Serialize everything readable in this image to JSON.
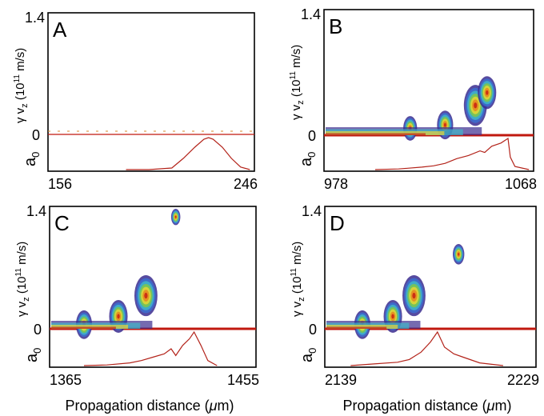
{
  "figure": {
    "ylabel": "γ v_z (10¹¹ m/s)",
    "ylabel_parts": {
      "prefix": "γ v",
      "sub": "z",
      "mid": " (10",
      "sup": "11",
      "suffix": " m/s)"
    },
    "a0_label": "a",
    "a0_sub": "0",
    "xlabel": "Propagation distance (μm)",
    "xlabel_parts": {
      "text": "Propagation distance (",
      "mu": "μ",
      "unit": "m)"
    }
  },
  "chart_data": [
    {
      "type": "heatmap",
      "panel": "A",
      "x_ticks": [
        "156",
        "246"
      ],
      "y_ticks": [
        "0",
        "1.4"
      ],
      "xlim": [
        156,
        246
      ],
      "ylim": [
        0,
        1.4
      ],
      "a0_envelope": {
        "x": [
          190,
          200,
          210,
          215,
          220,
          224,
          226,
          228,
          232,
          236,
          240,
          244
        ],
        "y": [
          0.0,
          0.0,
          0.05,
          0.35,
          0.7,
          0.95,
          1.0,
          0.95,
          0.7,
          0.35,
          0.08,
          0.0
        ]
      },
      "clusters": []
    },
    {
      "type": "heatmap",
      "panel": "B",
      "x_ticks": [
        "978",
        "1068"
      ],
      "y_ticks": [
        "0",
        "1.4"
      ],
      "xlim": [
        978,
        1068
      ],
      "ylim": [
        0,
        1.4
      ],
      "a0_envelope": {
        "x": [
          1000,
          1010,
          1020,
          1025,
          1030,
          1035,
          1040,
          1045,
          1047,
          1050,
          1054,
          1057,
          1058,
          1060,
          1066
        ],
        "y": [
          0.0,
          0.02,
          0.08,
          0.12,
          0.2,
          0.35,
          0.45,
          0.6,
          0.55,
          0.75,
          0.85,
          1.0,
          0.4,
          0.1,
          0.0
        ]
      },
      "clusters": [
        {
          "x": 1015,
          "y": 0.08,
          "size": 0.6
        },
        {
          "x": 1030,
          "y": 0.12,
          "size": 0.7
        },
        {
          "x": 1043,
          "y": 0.35,
          "size": 1.0
        },
        {
          "x": 1048,
          "y": 0.5,
          "size": 0.8
        }
      ]
    },
    {
      "type": "heatmap",
      "panel": "C",
      "x_ticks": [
        "1365",
        "1455"
      ],
      "y_ticks": [
        "0",
        "1.4"
      ],
      "xlim": [
        1365,
        1455
      ],
      "ylim": [
        0,
        1.4
      ],
      "a0_envelope": {
        "x": [
          1380,
          1390,
          1400,
          1405,
          1410,
          1415,
          1418,
          1420,
          1423,
          1426,
          1428,
          1431,
          1434,
          1438
        ],
        "y": [
          0.0,
          0.02,
          0.08,
          0.15,
          0.25,
          0.35,
          0.5,
          0.3,
          0.6,
          0.8,
          1.0,
          0.6,
          0.15,
          0.0
        ]
      },
      "clusters": [
        {
          "x": 1380,
          "y": 0.05,
          "size": 0.7
        },
        {
          "x": 1395,
          "y": 0.15,
          "size": 0.8
        },
        {
          "x": 1407,
          "y": 0.4,
          "size": 1.0
        },
        {
          "x": 1420,
          "y": 1.35,
          "size": 0.4
        }
      ]
    },
    {
      "type": "heatmap",
      "panel": "D",
      "x_ticks": [
        "2139",
        "2229"
      ],
      "y_ticks": [
        "0",
        "1.4"
      ],
      "xlim": [
        2139,
        2229
      ],
      "ylim": [
        0,
        1.4
      ],
      "a0_envelope": {
        "x": [
          2150,
          2160,
          2170,
          2175,
          2180,
          2184,
          2187,
          2190,
          2194,
          2198,
          2205,
          2215
        ],
        "y": [
          0.0,
          0.05,
          0.1,
          0.18,
          0.4,
          0.7,
          1.0,
          0.55,
          0.35,
          0.25,
          0.08,
          0.0
        ]
      },
      "clusters": [
        {
          "x": 2155,
          "y": 0.05,
          "size": 0.7
        },
        {
          "x": 2168,
          "y": 0.15,
          "size": 0.8
        },
        {
          "x": 2177,
          "y": 0.4,
          "size": 1.0
        },
        {
          "x": 2196,
          "y": 0.9,
          "size": 0.5
        }
      ]
    }
  ]
}
